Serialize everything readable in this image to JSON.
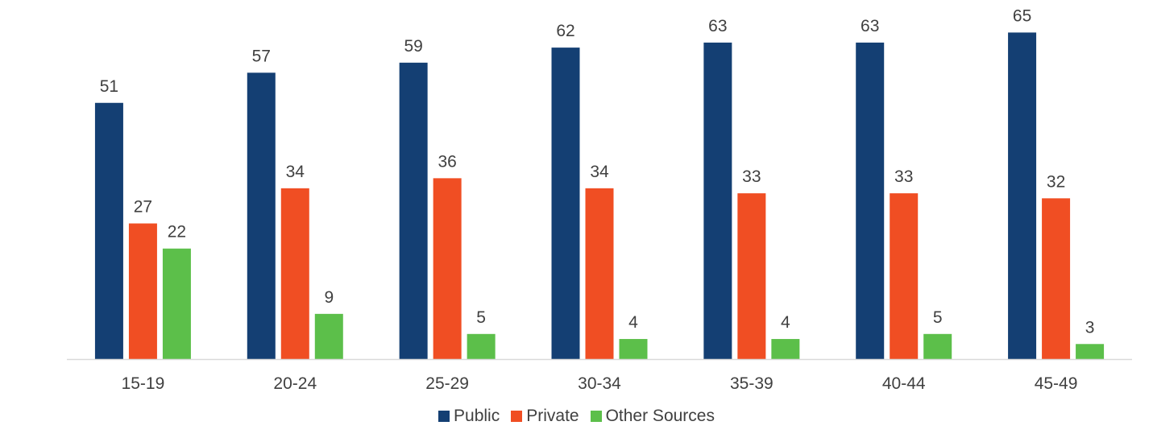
{
  "chart_data": {
    "type": "bar",
    "title": "",
    "xlabel": "",
    "ylabel": "",
    "categories": [
      "15-19",
      "20-24",
      "25-29",
      "30-34",
      "35-39",
      "40-44",
      "45-49"
    ],
    "series": [
      {
        "name": "Public",
        "color": "#143f73",
        "values": [
          51,
          57,
          59,
          62,
          63,
          63,
          65
        ]
      },
      {
        "name": "Private",
        "color": "#f04e23",
        "values": [
          27,
          34,
          36,
          34,
          33,
          33,
          32
        ]
      },
      {
        "name": "Other Sources",
        "color": "#5cbf4a",
        "values": [
          22,
          9,
          5,
          4,
          4,
          5,
          3
        ]
      }
    ],
    "ylim": [
      0,
      72
    ],
    "grid": false,
    "data_labels": true,
    "legend_position": "bottom"
  }
}
